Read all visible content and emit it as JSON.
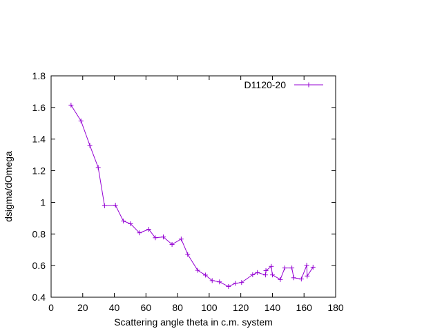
{
  "chart_data": {
    "type": "line",
    "title": "",
    "xlabel": "Scattering angle theta in c.m. system",
    "ylabel": "dsigma/dOmega",
    "xlim": [
      0,
      180
    ],
    "ylim": [
      0.4,
      1.8
    ],
    "xticks": [
      0,
      20,
      40,
      60,
      80,
      100,
      120,
      140,
      160,
      180
    ],
    "yticks": [
      0.4,
      0.6,
      0.8,
      1.0,
      1.2,
      1.4,
      1.6,
      1.8
    ],
    "xtick_labels": [
      "0",
      "20",
      "40",
      "60",
      "80",
      "100",
      "120",
      "140",
      "160",
      "180"
    ],
    "ytick_labels": [
      "0.4",
      "0.6",
      "0.8",
      "1",
      "1.2",
      "1.4",
      "1.6",
      "1.8"
    ],
    "grid": false,
    "legend_position": "top-right",
    "series": [
      {
        "name": "D1120-20",
        "color": "#9400d3",
        "marker": "plus",
        "x": [
          12.6,
          18.9,
          24.5,
          29.8,
          33.8,
          40.7,
          45.7,
          50.2,
          55.9,
          61.8,
          65.9,
          71.0,
          76.5,
          82.3,
          86.4,
          92.7,
          97.6,
          101.9,
          106.5,
          112.2,
          116.6,
          120.5,
          127.5,
          130.5,
          135.6,
          135.9,
          139.3,
          140.0,
          145.0,
          147.8,
          152.3,
          153.5,
          158.3,
          161.7,
          162.0,
          165.7
        ],
        "y": [
          1.615,
          1.515,
          1.36,
          1.22,
          0.978,
          0.982,
          0.882,
          0.865,
          0.807,
          0.829,
          0.776,
          0.781,
          0.734,
          0.768,
          0.671,
          0.57,
          0.54,
          0.505,
          0.497,
          0.468,
          0.488,
          0.493,
          0.542,
          0.556,
          0.541,
          0.568,
          0.595,
          0.541,
          0.512,
          0.585,
          0.585,
          0.523,
          0.515,
          0.602,
          0.534,
          0.59
        ]
      }
    ]
  }
}
